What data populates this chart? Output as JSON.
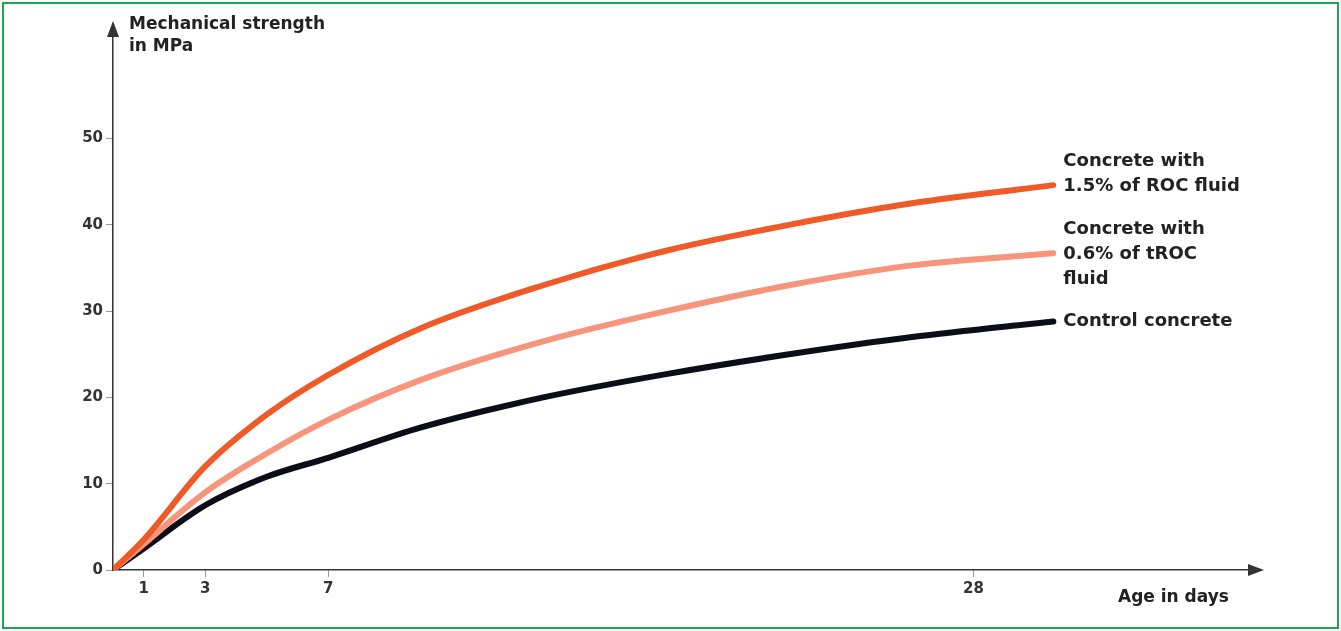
{
  "chart_data": {
    "type": "line",
    "ylabel": "Mechanical strength in MPa",
    "xlabel": "Age in days",
    "x": [
      0,
      1,
      3,
      5,
      7,
      10,
      14,
      18,
      22,
      26,
      30.6
    ],
    "series": [
      {
        "name": "Concrete with 1.5% of ROC fluid",
        "color": "#f05a28",
        "values": [
          0,
          3.5,
          12,
          18,
          22.6,
          28,
          33,
          37,
          40,
          42.5,
          44.6
        ]
      },
      {
        "name": "Concrete with 0.6% of tROC fluid",
        "color": "#f7957c",
        "values": [
          0,
          3,
          9,
          13.5,
          17.4,
          22,
          26.5,
          30,
          33,
          35.3,
          36.7
        ]
      },
      {
        "name": "Control concrete",
        "color": "#0d0d1a",
        "values": [
          0,
          2.5,
          7.5,
          10.8,
          13,
          16.5,
          20,
          22.7,
          25,
          27,
          28.8
        ]
      }
    ],
    "xlim": [
      0,
      37
    ],
    "xticks": [
      1,
      3,
      7,
      28
    ],
    "ylim": [
      0,
      62
    ],
    "yticks": [
      0,
      10,
      20,
      30,
      40,
      50
    ],
    "grid": false,
    "legend": false,
    "marker": "none",
    "line_style": "solid"
  }
}
